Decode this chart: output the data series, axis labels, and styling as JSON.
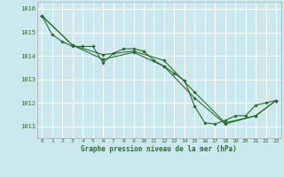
{
  "title": "Graphe pression niveau de la mer (hPa)",
  "bg_color": "#cce8ef",
  "grid_color": "#ffffff",
  "line_color": "#2d6a2d",
  "marker_color": "#2d6a2d",
  "xlim": [
    -0.5,
    23.5
  ],
  "ylim": [
    1010.5,
    1016.3
  ],
  "yticks": [
    1011,
    1012,
    1013,
    1014,
    1015,
    1016
  ],
  "xticks": [
    0,
    1,
    2,
    3,
    4,
    5,
    6,
    7,
    8,
    9,
    10,
    11,
    12,
    13,
    14,
    15,
    16,
    17,
    18,
    19,
    20,
    21,
    22,
    23
  ],
  "series": [
    {
      "x": [
        0,
        1,
        2,
        3,
        4,
        5,
        6,
        7,
        8,
        9,
        10,
        11,
        12,
        13,
        14,
        15,
        16,
        17,
        18,
        19,
        20,
        21,
        22,
        23
      ],
      "y": [
        1015.7,
        1014.9,
        1014.6,
        1014.4,
        1014.4,
        1014.4,
        1013.7,
        1014.1,
        1014.3,
        1014.3,
        1014.2,
        1013.8,
        1013.55,
        1013.25,
        1012.95,
        1011.85,
        1011.15,
        1011.1,
        1011.25,
        1011.45,
        1011.45,
        1011.9,
        1012.0,
        1012.1
      ]
    },
    {
      "x": [
        0,
        3,
        6,
        9,
        12,
        15,
        18,
        21,
        23
      ],
      "y": [
        1015.7,
        1014.45,
        1014.05,
        1014.2,
        1013.8,
        1012.45,
        1011.15,
        1011.45,
        1012.1
      ]
    },
    {
      "x": [
        0,
        3,
        6,
        9,
        12,
        15,
        18,
        21,
        23
      ],
      "y": [
        1015.7,
        1014.45,
        1013.85,
        1014.15,
        1013.55,
        1012.2,
        1011.1,
        1011.45,
        1012.1
      ]
    }
  ],
  "figsize": [
    3.2,
    2.0
  ],
  "dpi": 100
}
